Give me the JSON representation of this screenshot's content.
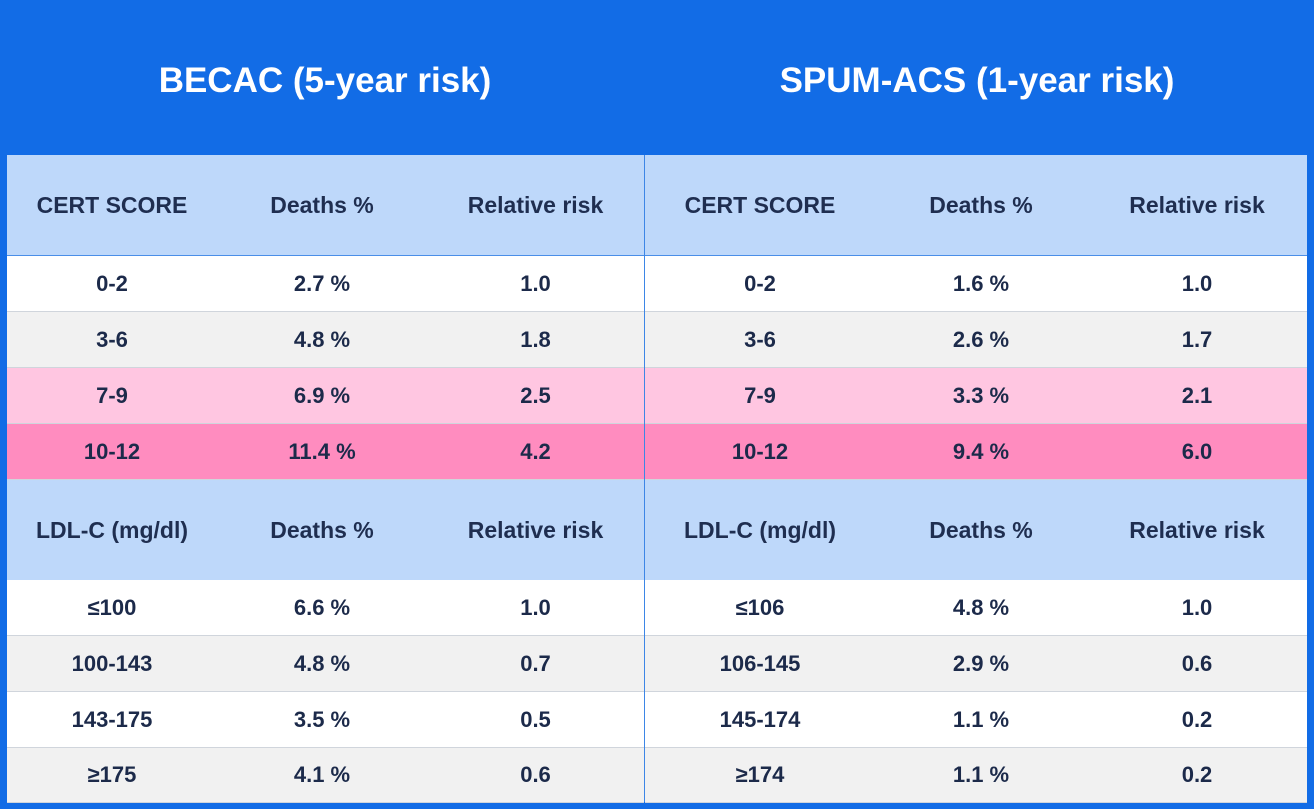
{
  "chart_data": [
    {
      "type": "table",
      "title": "BECAC (5-year risk)",
      "sections": [
        {
          "headers": [
            "CERT SCORE",
            "Deaths %",
            "Relative risk"
          ],
          "rows": [
            [
              "0-2",
              "2.7 %",
              "1.0"
            ],
            [
              "3-6",
              "4.8 %",
              "1.8"
            ],
            [
              "7-9",
              "6.9 %",
              "2.5"
            ],
            [
              "10-12",
              "11.4 %",
              "4.2"
            ]
          ]
        },
        {
          "headers": [
            "LDL-C (mg/dl)",
            "Deaths %",
            "Relative risk"
          ],
          "rows": [
            [
              "≤100",
              "6.6 %",
              "1.0"
            ],
            [
              "100-143",
              "4.8 %",
              "0.7"
            ],
            [
              "143-175",
              "3.5 %",
              "0.5"
            ],
            [
              "≥175",
              "4.1 %",
              "0.6"
            ]
          ]
        }
      ]
    },
    {
      "type": "table",
      "title": "SPUM-ACS (1-year risk)",
      "sections": [
        {
          "headers": [
            "CERT SCORE",
            "Deaths %",
            "Relative risk"
          ],
          "rows": [
            [
              "0-2",
              "1.6 %",
              "1.0"
            ],
            [
              "3-6",
              "2.6 %",
              "1.7"
            ],
            [
              "7-9",
              "3.3 %",
              "2.1"
            ],
            [
              "10-12",
              "9.4 %",
              "6.0"
            ]
          ]
        },
        {
          "headers": [
            "LDL-C (mg/dl)",
            "Deaths %",
            "Relative risk"
          ],
          "rows": [
            [
              "≤106",
              "4.8 %",
              "1.0"
            ],
            [
              "106-145",
              "2.9 %",
              "0.6"
            ],
            [
              "145-174",
              "1.1 %",
              "0.2"
            ],
            [
              "≥174",
              "1.1 %",
              "0.2"
            ]
          ]
        }
      ]
    }
  ],
  "colors": {
    "frame": "#126ce6",
    "header_row": "#bed8fa",
    "row_white": "#ffffff",
    "row_grey": "#f1f1f1",
    "row_pink_light": "#ffc6e1",
    "row_pink": "#ff8cbf"
  }
}
